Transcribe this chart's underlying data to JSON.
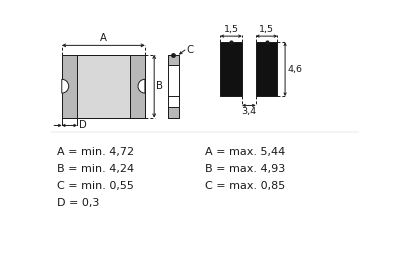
{
  "bg_color": "#ffffff",
  "line_color": "#1a1a1a",
  "fill_light": "#d8d8d8",
  "fill_pad": "#b8b8b8",
  "dark_fill": "#111111",
  "annotations_left": [
    "A = min. 4,72",
    "B = min. 4,24",
    "C = min. 0,55",
    "D = 0,3"
  ],
  "annotations_right": [
    "A = max. 5,44",
    "B = max. 4,93",
    "C = max. 0,85",
    ""
  ],
  "font_size_ann": 8.0,
  "font_size_dim": 6.8,
  "lw": 0.7
}
